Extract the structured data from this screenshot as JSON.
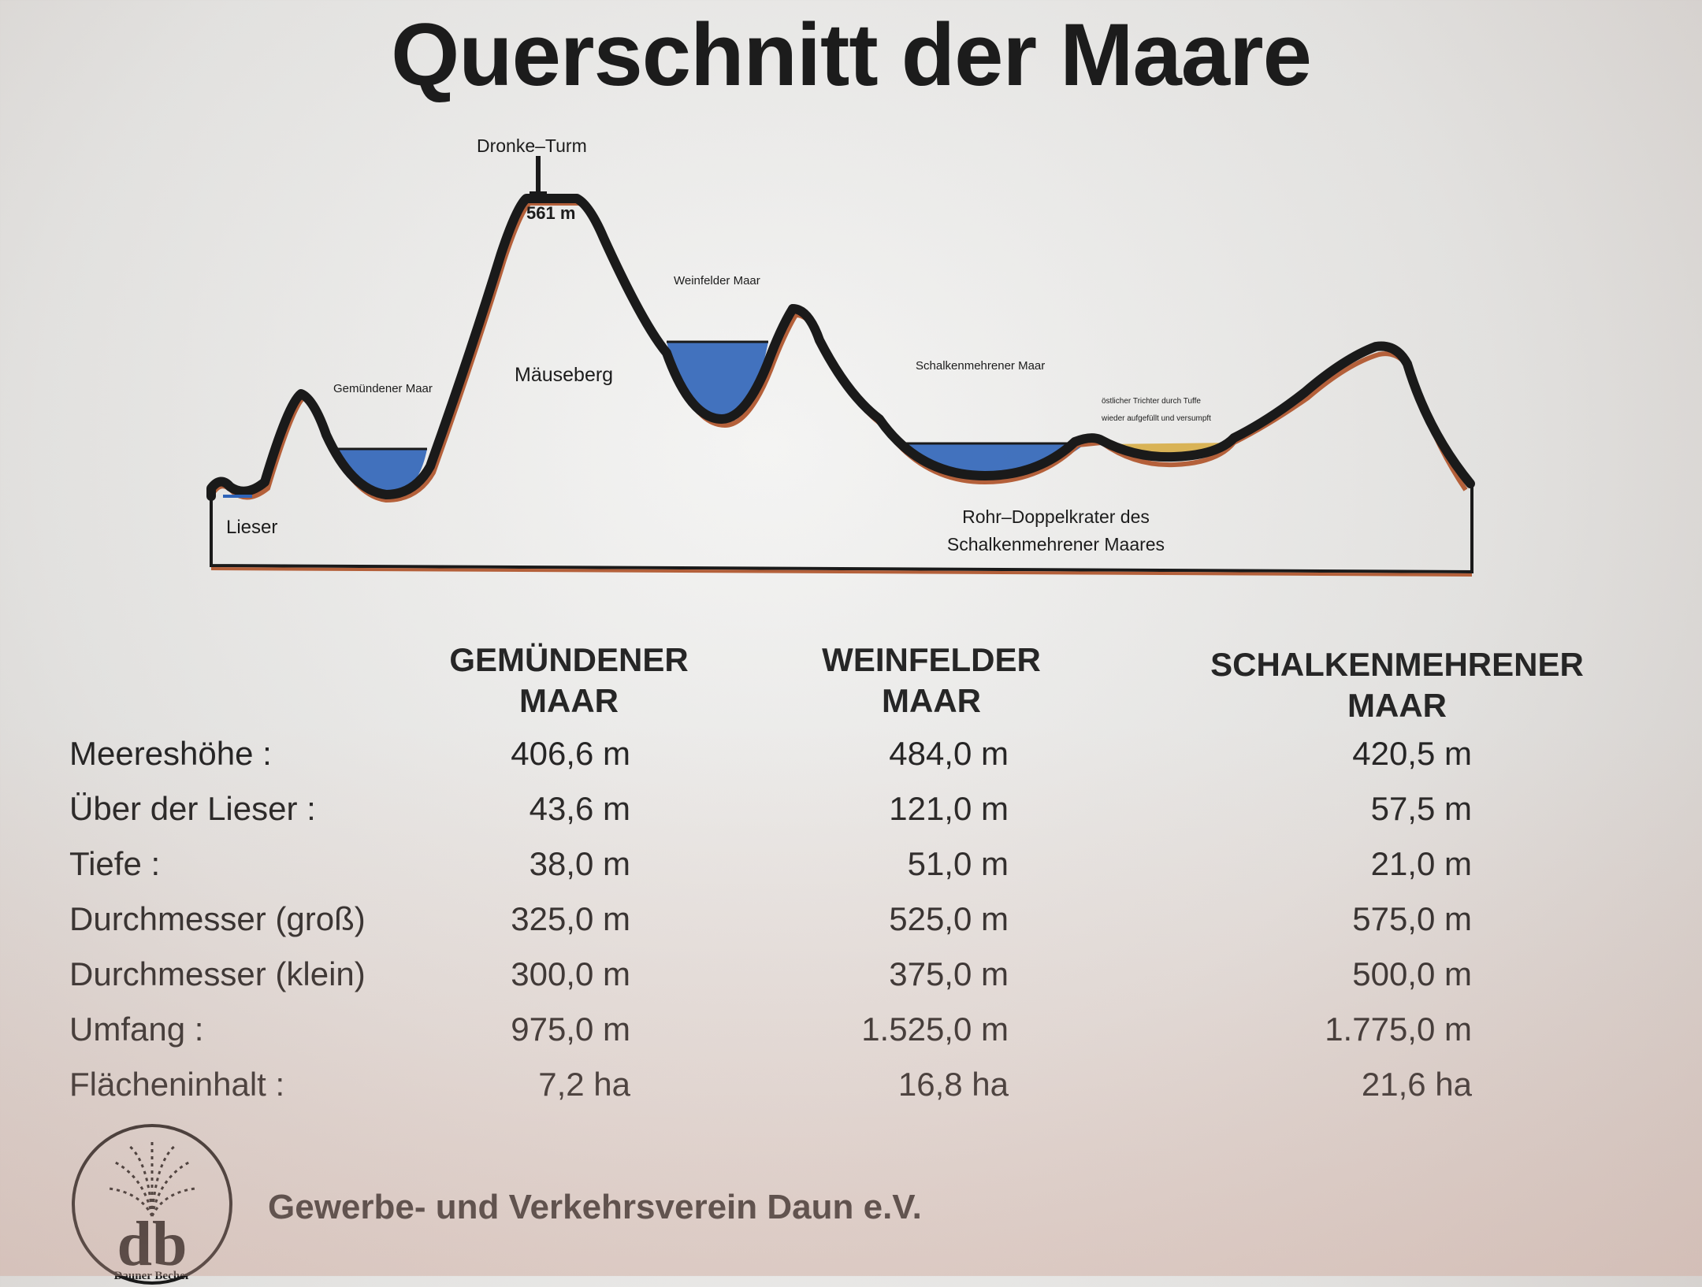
{
  "title": "Querschnitt der Maare",
  "diagram": {
    "tower": "Dronke–Turm",
    "peak_height": "561 m",
    "weinfelder": "Weinfelder Maar",
    "mauseberg": "Mäuseberg",
    "gemuendener": "Gemündener Maar",
    "schalkenmehrener": "Schalkenmehrener Maar",
    "trichter_line1": "östlicher Trichter durch Tuffe",
    "trichter_line2": "wieder aufgefüllt und versumpft",
    "lieser": "Lieser",
    "rohr_line1": "Rohr–Doppelkrater des",
    "rohr_line2": "Schalkenmehrener Maares",
    "colors": {
      "water": "#2f64b8",
      "ground": "#1a1a1a",
      "underline": "#b4603a",
      "fill": "#d9b356"
    }
  },
  "table": {
    "headers": [
      {
        "line1": "GEMÜNDENER",
        "line2": "MAAR"
      },
      {
        "line1": "WEINFELDER",
        "line2": "MAAR"
      },
      {
        "line1": "SCHALKENMEHRENER",
        "line2": "MAAR"
      }
    ],
    "rows": [
      {
        "label": "Meereshöhe :",
        "values": [
          "406,6 m",
          "484,0 m",
          "420,5 m"
        ]
      },
      {
        "label": "Über der Lieser :",
        "values": [
          "43,6 m",
          "121,0 m",
          "57,5 m"
        ]
      },
      {
        "label": "Tiefe :",
        "values": [
          "38,0 m",
          "51,0 m",
          "21,0 m"
        ]
      },
      {
        "label": "Durchmesser (groß)",
        "values": [
          "325,0 m",
          "525,0 m",
          "575,0 m"
        ]
      },
      {
        "label": "Durchmesser (klein)",
        "values": [
          "300,0 m",
          "375,0 m",
          "500,0 m"
        ]
      },
      {
        "label": "Umfang :",
        "values": [
          "975,0 m",
          "1.525,0 m",
          "1.775,0 m"
        ]
      },
      {
        "label": "Flächeninhalt :",
        "values": [
          "7,2 ha",
          "16,8 ha",
          "21,6 ha"
        ]
      }
    ]
  },
  "logo": {
    "letters": "db",
    "caption": "Dauner Becher"
  },
  "footer": "Gewerbe- und Verkehrsverein Daun e.V."
}
